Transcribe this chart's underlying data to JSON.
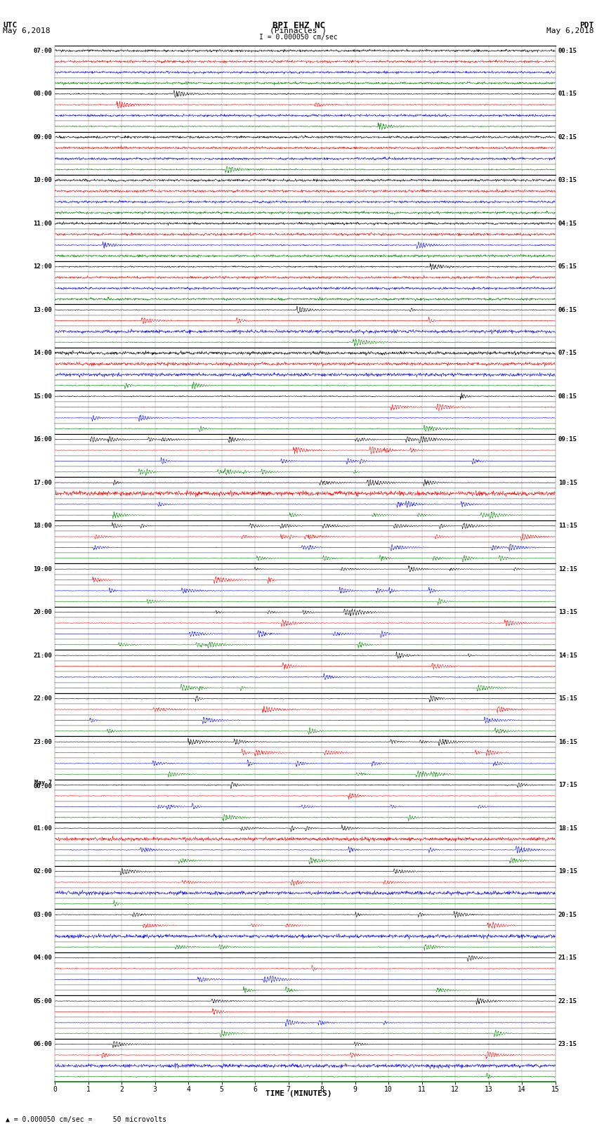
{
  "title_line1": "BPI EHZ NC",
  "title_line2": "(Pinnacles )",
  "scale_text": "I = 0.000050 cm/sec",
  "left_label_1": "UTC",
  "left_label_2": "May 6,2018",
  "right_label_1": "PDT",
  "right_label_2": "May 6,2018",
  "footer_text": "= 0.000050 cm/sec =     50 microvolts",
  "xlabel": "TIME (MINUTES)",
  "utc_labels": [
    "07:00",
    "08:00",
    "09:00",
    "10:00",
    "11:00",
    "12:00",
    "13:00",
    "14:00",
    "15:00",
    "16:00",
    "17:00",
    "18:00",
    "19:00",
    "20:00",
    "21:00",
    "22:00",
    "23:00",
    "May 7\n00:00",
    "01:00",
    "02:00",
    "03:00",
    "04:00",
    "05:00",
    "06:00"
  ],
  "pdt_labels": [
    "00:15",
    "01:15",
    "02:15",
    "03:15",
    "04:15",
    "05:15",
    "06:15",
    "07:15",
    "08:15",
    "09:15",
    "10:15",
    "11:15",
    "12:15",
    "13:15",
    "14:15",
    "15:15",
    "16:15",
    "17:15",
    "18:15",
    "19:15",
    "20:15",
    "21:15",
    "22:15",
    "23:15"
  ],
  "n_hours": 24,
  "traces_per_hour": 4,
  "n_cols": 15,
  "row_colors": [
    "black",
    "red",
    "blue",
    "green"
  ],
  "bg_color": "#ffffff",
  "grid_color": "#aaaaaa",
  "tick_color": "#000000"
}
